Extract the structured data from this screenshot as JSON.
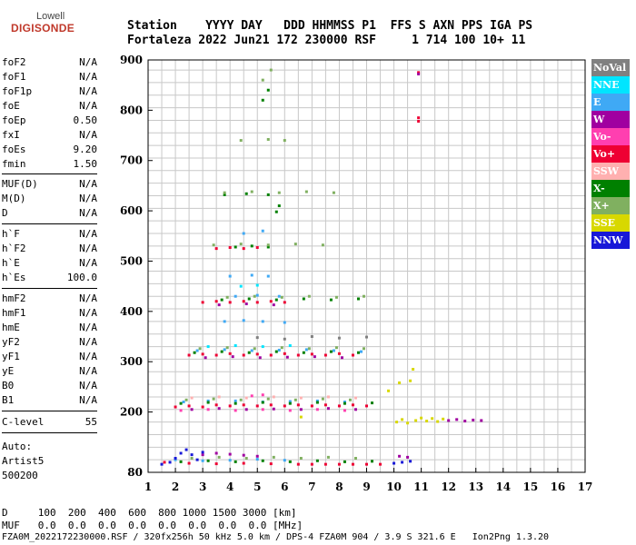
{
  "logo": {
    "top": "Lowell",
    "main": "DIGISONDE"
  },
  "header": {
    "labels": "Station    YYYY DAY   DDD HHMMSS P1  FFS S AXN PPS IGA PS",
    "values": "Fortaleza 2022 Jun21 172 230000 RSF     1 714 100 10+ 11"
  },
  "params": [
    {
      "name": "foF2",
      "value": "N/A"
    },
    {
      "name": "foF1",
      "value": "N/A"
    },
    {
      "name": "foF1p",
      "value": "N/A"
    },
    {
      "name": "foE",
      "value": "N/A"
    },
    {
      "name": "foEp",
      "value": "0.50"
    },
    {
      "name": "fxI",
      "value": "N/A"
    },
    {
      "name": "foEs",
      "value": "9.20"
    },
    {
      "name": "fmin",
      "value": "1.50"
    },
    {
      "name": "MUF(D)",
      "value": "N/A"
    },
    {
      "name": "M(D)",
      "value": "N/A"
    },
    {
      "name": "D",
      "value": "N/A"
    },
    {
      "name": "h`F",
      "value": "N/A"
    },
    {
      "name": "h`F2",
      "value": "N/A"
    },
    {
      "name": "h`E",
      "value": "N/A"
    },
    {
      "name": "h`Es",
      "value": "100.0"
    },
    {
      "name": "hmF2",
      "value": "N/A"
    },
    {
      "name": "hmF1",
      "value": "N/A"
    },
    {
      "name": "hmE",
      "value": "N/A"
    },
    {
      "name": "yF2",
      "value": "N/A"
    },
    {
      "name": "yF1",
      "value": "N/A"
    },
    {
      "name": "yE",
      "value": "N/A"
    },
    {
      "name": "B0",
      "value": "N/A"
    },
    {
      "name": "B1",
      "value": "N/A"
    },
    {
      "name": "C-level",
      "value": "55"
    }
  ],
  "auto": {
    "line1": "Auto:",
    "line2": "Artist5",
    "line3": "500200"
  },
  "legend": [
    {
      "label": "NoVal",
      "color": "#808080",
      "text_color": "#ffffff"
    },
    {
      "label": "NNE",
      "color": "#00e5ff",
      "text_color": "#ffffff"
    },
    {
      "label": "E",
      "color": "#3fa9f5",
      "text_color": "#ffffff"
    },
    {
      "label": "W",
      "color": "#a000a0",
      "text_color": "#ffffff"
    },
    {
      "label": "Vo-",
      "color": "#ff3fb0",
      "text_color": "#ffffff"
    },
    {
      "label": "Vo+",
      "color": "#ee0033",
      "text_color": "#ffffff"
    },
    {
      "label": "SSW",
      "color": "#ffb0b0",
      "text_color": "#ffffff"
    },
    {
      "label": "X-",
      "color": "#008000",
      "text_color": "#ffffff"
    },
    {
      "label": "X+",
      "color": "#80b060",
      "text_color": "#ffffff"
    },
    {
      "label": "SSE",
      "color": "#d8d800",
      "text_color": "#ffffff"
    },
    {
      "label": "NNW",
      "color": "#1818d8",
      "text_color": "#ffffff"
    }
  ],
  "footer": {
    "d_line": "D     100  200  400  600  800 1000 1500 3000 [km]",
    "muf_line": "MUF   0.0  0.0  0.0  0.0  0.0  0.0  0.0  0.0 [MHz]",
    "file_line": "FZA0M_2022172230000.RSF / 320fx256h 50 kHz 5.0 km / DPS-4 FZA0M 904 / 3.9 S 321.6 E   Ion2Png 1.3.20"
  },
  "chart_data": {
    "type": "scatter",
    "title": "",
    "xlabel": "",
    "ylabel": "",
    "xlim": [
      1,
      17
    ],
    "ylim": [
      80,
      900
    ],
    "x_ticks": [
      1,
      2,
      3,
      4,
      5,
      6,
      7,
      8,
      9,
      10,
      11,
      12,
      13,
      14,
      15,
      16,
      17
    ],
    "y_ticks": [
      80,
      200,
      300,
      400,
      500,
      600,
      700,
      800,
      900
    ],
    "grid": true,
    "legend_position": "right",
    "series": [
      {
        "name": "Vo+",
        "color": "#ee0033",
        "points": [
          [
            2.0,
            210
          ],
          [
            2.5,
            212
          ],
          [
            3.0,
            210
          ],
          [
            3.5,
            214
          ],
          [
            4.0,
            212
          ],
          [
            4.5,
            214
          ],
          [
            5.0,
            212
          ],
          [
            5.5,
            214
          ],
          [
            6.0,
            212
          ],
          [
            6.5,
            214
          ],
          [
            7.0,
            212
          ],
          [
            7.5,
            214
          ],
          [
            8.0,
            212
          ],
          [
            8.5,
            214
          ],
          [
            9.0,
            212
          ],
          [
            2.5,
            313
          ],
          [
            3.0,
            315
          ],
          [
            3.5,
            313
          ],
          [
            4.0,
            316
          ],
          [
            4.5,
            313
          ],
          [
            5.0,
            315
          ],
          [
            5.5,
            313
          ],
          [
            6.0,
            316
          ],
          [
            6.5,
            313
          ],
          [
            7.0,
            315
          ],
          [
            7.5,
            313
          ],
          [
            8.0,
            316
          ],
          [
            8.5,
            313
          ],
          [
            3.0,
            418
          ],
          [
            3.5,
            420
          ],
          [
            4.0,
            418
          ],
          [
            4.5,
            420
          ],
          [
            5.0,
            418
          ],
          [
            5.5,
            420
          ],
          [
            6.0,
            418
          ],
          [
            3.5,
            525
          ],
          [
            4.0,
            527
          ],
          [
            4.5,
            525
          ],
          [
            5.0,
            527
          ],
          [
            1.6,
            100
          ],
          [
            2.5,
            98
          ],
          [
            3.5,
            97
          ],
          [
            4.5,
            98
          ],
          [
            5.5,
            97
          ],
          [
            6.5,
            96
          ],
          [
            7.0,
            96
          ],
          [
            7.5,
            96
          ],
          [
            8.0,
            96
          ],
          [
            8.5,
            96
          ],
          [
            9.0,
            96
          ],
          [
            9.5,
            96
          ],
          [
            10.9,
            875
          ],
          [
            10.9,
            785
          ],
          [
            10.9,
            778
          ]
        ]
      },
      {
        "name": "E",
        "color": "#3fa9f5",
        "points": [
          [
            2.3,
            220
          ],
          [
            3.2,
            222
          ],
          [
            4.2,
            222
          ],
          [
            5.2,
            220
          ],
          [
            6.2,
            221
          ],
          [
            7.2,
            222
          ],
          [
            8.2,
            220
          ],
          [
            2.8,
            322
          ],
          [
            3.8,
            324
          ],
          [
            4.8,
            322
          ],
          [
            5.8,
            323
          ],
          [
            6.8,
            324
          ],
          [
            7.8,
            322
          ],
          [
            8.8,
            320
          ],
          [
            3.8,
            380
          ],
          [
            4.5,
            382
          ],
          [
            5.2,
            380
          ],
          [
            6.0,
            378
          ],
          [
            4.2,
            430
          ],
          [
            5.0,
            432
          ],
          [
            5.8,
            430
          ],
          [
            4.0,
            470
          ],
          [
            4.8,
            472
          ],
          [
            5.4,
            470
          ],
          [
            4.5,
            555
          ],
          [
            5.2,
            560
          ],
          [
            2.0,
            105
          ],
          [
            3.0,
            103
          ],
          [
            4.0,
            104
          ],
          [
            5.0,
            106
          ],
          [
            6.0,
            104
          ]
        ]
      },
      {
        "name": "W",
        "color": "#a000a0",
        "points": [
          [
            2.6,
            205
          ],
          [
            3.6,
            207
          ],
          [
            4.6,
            205
          ],
          [
            5.6,
            206
          ],
          [
            6.6,
            205
          ],
          [
            7.6,
            207
          ],
          [
            8.6,
            205
          ],
          [
            3.1,
            308
          ],
          [
            4.1,
            310
          ],
          [
            5.1,
            308
          ],
          [
            6.1,
            309
          ],
          [
            7.1,
            310
          ],
          [
            8.1,
            308
          ],
          [
            3.6,
            413
          ],
          [
            4.6,
            415
          ],
          [
            5.6,
            413
          ],
          [
            3.0,
            115
          ],
          [
            3.5,
            118
          ],
          [
            4.0,
            116
          ],
          [
            4.5,
            114
          ],
          [
            5.0,
            112
          ],
          [
            10.2,
            112
          ],
          [
            10.5,
            110
          ],
          [
            12.0,
            183
          ],
          [
            12.3,
            185
          ],
          [
            12.6,
            182
          ],
          [
            12.9,
            184
          ],
          [
            13.2,
            183
          ],
          [
            10.9,
            872
          ]
        ]
      },
      {
        "name": "X-",
        "color": "#008000",
        "points": [
          [
            2.2,
            217
          ],
          [
            3.2,
            219
          ],
          [
            4.2,
            217
          ],
          [
            5.2,
            219
          ],
          [
            6.2,
            217
          ],
          [
            7.2,
            219
          ],
          [
            8.2,
            217
          ],
          [
            9.2,
            218
          ],
          [
            2.7,
            318
          ],
          [
            3.7,
            320
          ],
          [
            4.7,
            318
          ],
          [
            5.7,
            320
          ],
          [
            6.7,
            318
          ],
          [
            7.7,
            320
          ],
          [
            8.7,
            318
          ],
          [
            3.7,
            423
          ],
          [
            4.7,
            425
          ],
          [
            5.7,
            423
          ],
          [
            6.7,
            425
          ],
          [
            7.7,
            423
          ],
          [
            8.7,
            425
          ],
          [
            4.2,
            528
          ],
          [
            4.8,
            530
          ],
          [
            5.4,
            528
          ],
          [
            3.8,
            632
          ],
          [
            4.6,
            634
          ],
          [
            5.4,
            632
          ],
          [
            5.7,
            598
          ],
          [
            5.8,
            610
          ],
          [
            5.2,
            820
          ],
          [
            5.4,
            840
          ],
          [
            2.2,
            101
          ],
          [
            3.2,
            103
          ],
          [
            4.2,
            101
          ],
          [
            5.2,
            103
          ],
          [
            6.2,
            101
          ],
          [
            7.2,
            103
          ],
          [
            8.2,
            101
          ],
          [
            9.2,
            102
          ]
        ]
      },
      {
        "name": "X+",
        "color": "#80b060",
        "points": [
          [
            2.4,
            224
          ],
          [
            3.4,
            226
          ],
          [
            4.4,
            224
          ],
          [
            5.4,
            226
          ],
          [
            6.4,
            224
          ],
          [
            7.4,
            226
          ],
          [
            8.4,
            224
          ],
          [
            2.9,
            326
          ],
          [
            3.9,
            328
          ],
          [
            4.9,
            326
          ],
          [
            5.9,
            328
          ],
          [
            6.9,
            326
          ],
          [
            7.9,
            328
          ],
          [
            8.9,
            326
          ],
          [
            3.9,
            428
          ],
          [
            4.9,
            430
          ],
          [
            5.9,
            428
          ],
          [
            6.9,
            430
          ],
          [
            7.9,
            428
          ],
          [
            8.9,
            430
          ],
          [
            3.4,
            532
          ],
          [
            4.4,
            534
          ],
          [
            5.4,
            532
          ],
          [
            6.4,
            534
          ],
          [
            7.4,
            532
          ],
          [
            3.8,
            636
          ],
          [
            4.8,
            638
          ],
          [
            5.8,
            636
          ],
          [
            6.8,
            638
          ],
          [
            7.8,
            636
          ],
          [
            4.4,
            740
          ],
          [
            5.4,
            742
          ],
          [
            6.0,
            740
          ],
          [
            5.2,
            860
          ],
          [
            5.5,
            880
          ],
          [
            2.6,
            108
          ],
          [
            3.6,
            110
          ],
          [
            4.6,
            108
          ],
          [
            5.6,
            110
          ],
          [
            6.6,
            108
          ],
          [
            7.6,
            110
          ],
          [
            8.6,
            108
          ]
        ]
      },
      {
        "name": "NNW",
        "color": "#1818d8",
        "points": [
          [
            1.5,
            96
          ],
          [
            1.8,
            100
          ],
          [
            2.0,
            108
          ],
          [
            2.2,
            118
          ],
          [
            2.4,
            125
          ],
          [
            2.6,
            115
          ],
          [
            2.8,
            105
          ],
          [
            3.0,
            120
          ],
          [
            10.0,
            98
          ],
          [
            10.3,
            100
          ],
          [
            10.6,
            102
          ]
        ]
      },
      {
        "name": "SSE",
        "color": "#d8d800",
        "points": [
          [
            6.6,
            190
          ],
          [
            9.8,
            242
          ],
          [
            10.2,
            258
          ],
          [
            10.6,
            262
          ],
          [
            10.7,
            285
          ],
          [
            10.1,
            180
          ],
          [
            10.3,
            185
          ],
          [
            10.5,
            178
          ],
          [
            10.8,
            183
          ],
          [
            11.0,
            188
          ],
          [
            11.2,
            182
          ],
          [
            11.4,
            187
          ],
          [
            11.6,
            181
          ],
          [
            11.8,
            186
          ]
        ]
      },
      {
        "name": "Vo-",
        "color": "#ff3fb0",
        "points": [
          [
            2.2,
            203
          ],
          [
            3.2,
            205
          ],
          [
            4.2,
            203
          ],
          [
            5.2,
            205
          ],
          [
            6.2,
            203
          ],
          [
            7.2,
            205
          ],
          [
            8.2,
            203
          ],
          [
            4.8,
            232
          ],
          [
            5.2,
            234
          ]
        ]
      },
      {
        "name": "NNE",
        "color": "#00e5ff",
        "points": [
          [
            3.2,
            330
          ],
          [
            4.2,
            332
          ],
          [
            5.2,
            330
          ],
          [
            6.2,
            332
          ],
          [
            4.4,
            450
          ],
          [
            5.0,
            452
          ]
        ]
      },
      {
        "name": "SSW",
        "color": "#ffb0b0",
        "points": [
          [
            2.6,
            228
          ],
          [
            3.6,
            230
          ],
          [
            4.6,
            228
          ],
          [
            5.6,
            230
          ],
          [
            6.6,
            228
          ],
          [
            7.6,
            230
          ],
          [
            8.6,
            228
          ]
        ]
      },
      {
        "name": "NoVal",
        "color": "#808080",
        "points": [
          [
            5.0,
            348
          ],
          [
            6.0,
            345
          ],
          [
            7.0,
            350
          ],
          [
            8.0,
            347
          ],
          [
            9.0,
            349
          ]
        ]
      }
    ]
  }
}
